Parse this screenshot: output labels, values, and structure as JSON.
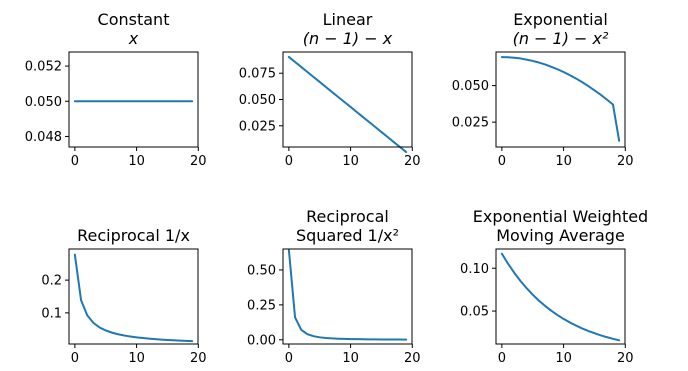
{
  "chart_data": [
    {
      "type": "line",
      "title_lines": [
        "Constant",
        "x"
      ],
      "title_math": [
        false,
        true
      ],
      "xlim": [
        0,
        19
      ],
      "ylim": [
        0.0474,
        0.0528
      ],
      "xticks": [
        0,
        10,
        20
      ],
      "xtick_labels": [
        "0",
        "10",
        "20"
      ],
      "yticks": [
        0.048,
        0.05,
        0.052
      ],
      "ytick_labels": [
        "0.048",
        "0.050",
        "0.052"
      ],
      "x": [
        0,
        1,
        2,
        3,
        4,
        5,
        6,
        7,
        8,
        9,
        10,
        11,
        12,
        13,
        14,
        15,
        16,
        17,
        18,
        19
      ],
      "series": [
        {
          "color": "#1f77b4",
          "values": [
            0.05,
            0.05,
            0.05,
            0.05,
            0.05,
            0.05,
            0.05,
            0.05,
            0.05,
            0.05,
            0.05,
            0.05,
            0.05,
            0.05,
            0.05,
            0.05,
            0.05,
            0.05,
            0.05,
            0.05
          ]
        }
      ]
    },
    {
      "type": "line",
      "title_lines": [
        "Linear",
        "(n − 1) − x"
      ],
      "title_math": [
        false,
        true
      ],
      "xlim": [
        0,
        19
      ],
      "ylim": [
        0.0048,
        0.0952
      ],
      "xticks": [
        0,
        10,
        20
      ],
      "xtick_labels": [
        "0",
        "10",
        "20"
      ],
      "yticks": [
        0.025,
        0.05,
        0.075
      ],
      "ytick_labels": [
        "0.025",
        "0.050",
        "0.075"
      ],
      "x": [
        0,
        1,
        2,
        3,
        4,
        5,
        6,
        7,
        8,
        9,
        10,
        11,
        12,
        13,
        14,
        15,
        16,
        17,
        18,
        19
      ],
      "series": [
        {
          "color": "#1f77b4",
          "values": [
            0.0905,
            0.0857,
            0.081,
            0.0762,
            0.0714,
            0.0667,
            0.0619,
            0.0571,
            0.0524,
            0.0476,
            0.0429,
            0.0381,
            0.0333,
            0.0286,
            0.0238,
            0.019,
            0.0143,
            0.0095,
            0.0048,
            0.0
          ]
        }
      ]
    },
    {
      "type": "line",
      "title_lines": [
        "Exponential",
        "(n − 1) − x²"
      ],
      "title_math": [
        false,
        true
      ],
      "xlim": [
        0,
        19
      ],
      "ylim": [
        0.008,
        0.073
      ],
      "xticks": [
        0,
        10,
        20
      ],
      "xtick_labels": [
        "0",
        "10",
        "20"
      ],
      "yticks": [
        0.025,
        0.05
      ],
      "ytick_labels": [
        "0.025",
        "0.050"
      ],
      "x": [
        0,
        1,
        2,
        3,
        4,
        5,
        6,
        7,
        8,
        9,
        10,
        11,
        12,
        13,
        14,
        15,
        16,
        17,
        18,
        19
      ],
      "series": [
        {
          "color": "#1f77b4",
          "values": [
            0.0695,
            0.0694,
            0.0691,
            0.0686,
            0.0678,
            0.0669,
            0.0658,
            0.0645,
            0.0629,
            0.0612,
            0.0593,
            0.0572,
            0.0549,
            0.0524,
            0.0497,
            0.0468,
            0.0438,
            0.0405,
            0.0371,
            0.0123
          ]
        }
      ]
    },
    {
      "type": "line",
      "title_lines": [
        "Reciprocal 1/x"
      ],
      "title_math": [
        false
      ],
      "xlim": [
        0,
        19
      ],
      "ylim": [
        0.005,
        0.295
      ],
      "xticks": [
        0,
        10,
        20
      ],
      "xtick_labels": [
        "0",
        "10",
        "20"
      ],
      "yticks": [
        0.1,
        0.2
      ],
      "ytick_labels": [
        "0.1",
        "0.2"
      ],
      "x": [
        0,
        1,
        2,
        3,
        4,
        5,
        6,
        7,
        8,
        9,
        10,
        11,
        12,
        13,
        14,
        15,
        16,
        17,
        18,
        19
      ],
      "series": [
        {
          "color": "#1f77b4",
          "values": [
            0.278,
            0.139,
            0.0926,
            0.0695,
            0.0556,
            0.0463,
            0.0397,
            0.0347,
            0.0309,
            0.0278,
            0.0253,
            0.0232,
            0.0214,
            0.0199,
            0.0185,
            0.0174,
            0.0163,
            0.0154,
            0.0146,
            0.0139
          ]
        }
      ]
    },
    {
      "type": "line",
      "title_lines": [
        "Reciprocal",
        "Squared 1/x²"
      ],
      "title_math": [
        false,
        false
      ],
      "xlim": [
        0,
        19
      ],
      "ylim": [
        -0.03,
        0.65
      ],
      "xticks": [
        0,
        10,
        20
      ],
      "xtick_labels": [
        "0",
        "10",
        "20"
      ],
      "yticks": [
        0.0,
        0.25,
        0.5
      ],
      "ytick_labels": [
        "0.00",
        "0.25",
        "0.50"
      ],
      "x": [
        0,
        1,
        2,
        3,
        4,
        5,
        6,
        7,
        8,
        9,
        10,
        11,
        12,
        13,
        14,
        15,
        16,
        17,
        18,
        19
      ],
      "series": [
        {
          "color": "#1f77b4",
          "values": [
            0.6452,
            0.1613,
            0.0717,
            0.0403,
            0.0258,
            0.0179,
            0.0132,
            0.0101,
            0.008,
            0.0065,
            0.0053,
            0.0045,
            0.0038,
            0.0033,
            0.0029,
            0.0025,
            0.0022,
            0.002,
            0.0018,
            0.0016
          ]
        }
      ]
    },
    {
      "type": "line",
      "title_lines": [
        "Exponential Weighted",
        "Moving Average"
      ],
      "title_math": [
        false,
        false
      ],
      "xlim": [
        0,
        19
      ],
      "ylim": [
        0.0115,
        0.1225
      ],
      "xticks": [
        0,
        10,
        20
      ],
      "xtick_labels": [
        "0",
        "10",
        "20"
      ],
      "yticks": [
        0.05,
        0.1
      ],
      "ytick_labels": [
        "0.05",
        "0.10"
      ],
      "x": [
        0,
        1,
        2,
        3,
        4,
        5,
        6,
        7,
        8,
        9,
        10,
        11,
        12,
        13,
        14,
        15,
        16,
        17,
        18,
        19
      ],
      "series": [
        {
          "color": "#1f77b4",
          "values": [
            0.117,
            0.1053,
            0.0948,
            0.0853,
            0.0768,
            0.0691,
            0.0622,
            0.056,
            0.0504,
            0.0453,
            0.0408,
            0.0367,
            0.0331,
            0.0297,
            0.0268,
            0.0241,
            0.0217,
            0.0195,
            0.0176,
            0.0158
          ]
        }
      ]
    }
  ]
}
